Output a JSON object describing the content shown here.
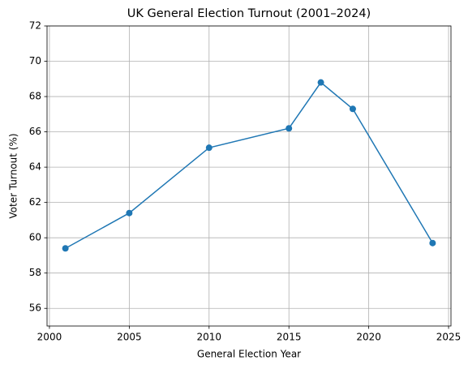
{
  "chart_data": {
    "type": "line",
    "title": "UK General Election Turnout (2001–2024)",
    "x_label": "General Election Year",
    "y_label": "Voter Turnout (%)",
    "x": [
      2001,
      2005,
      2010,
      2015,
      2017,
      2019,
      2024
    ],
    "series": [
      {
        "color": "#1f77b4",
        "values": [
          59.4,
          61.4,
          65.1,
          66.2,
          68.8,
          67.3,
          59.7
        ]
      }
    ],
    "xlim": [
      1999.85,
      2025.15
    ],
    "xticks": [
      2000,
      2005,
      2010,
      2015,
      2020,
      2025
    ],
    "ylim": [
      55,
      72
    ],
    "yticks": [
      56,
      58,
      60,
      62,
      64,
      66,
      68,
      70,
      72
    ],
    "grid": true,
    "markers": true
  }
}
